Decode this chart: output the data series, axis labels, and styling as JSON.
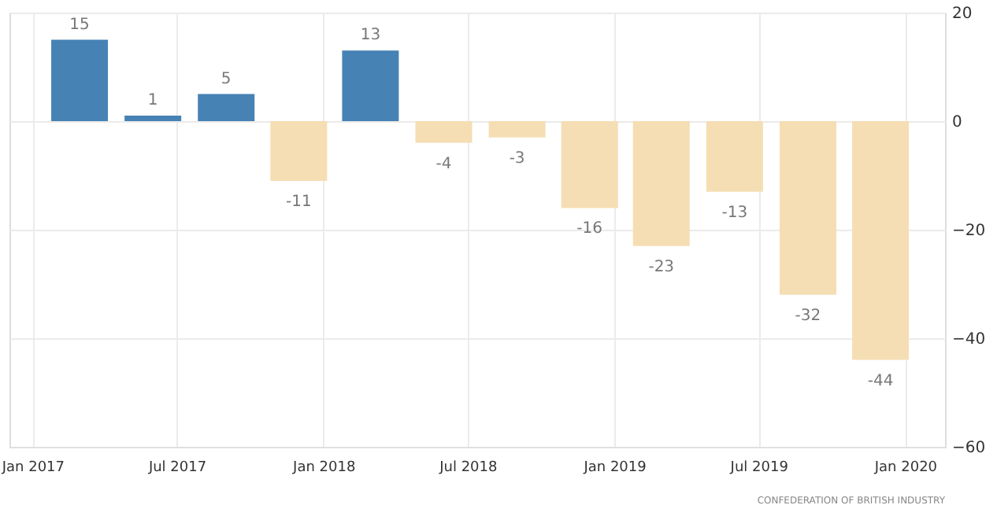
{
  "chart_data": {
    "type": "bar",
    "x": [
      "2017-03",
      "2017-06",
      "2017-09",
      "2017-12",
      "2018-03",
      "2018-06",
      "2018-09",
      "2018-12",
      "2019-03",
      "2019-06",
      "2019-09",
      "2019-12"
    ],
    "values": [
      15,
      1,
      5,
      -11,
      13,
      -4,
      -3,
      -16,
      -23,
      -13,
      -32,
      -44
    ],
    "colors": [
      "#4682b4",
      "#4682b4",
      "#4682b4",
      "#f5deb3",
      "#4682b4",
      "#f5deb3",
      "#f5deb3",
      "#f5deb3",
      "#f5deb3",
      "#f5deb3",
      "#f5deb3",
      "#f5deb3"
    ],
    "data_labels": true,
    "xlim": [
      "2016-12-03",
      "2020-02-20"
    ],
    "xticks": [
      {
        "value": "2017-01",
        "label": "Jan 2017"
      },
      {
        "value": "2017-07",
        "label": "Jul 2017"
      },
      {
        "value": "2018-01",
        "label": "Jan 2018"
      },
      {
        "value": "2018-07",
        "label": "Jul 2018"
      },
      {
        "value": "2019-01",
        "label": "Jan 2019"
      },
      {
        "value": "2019-07",
        "label": "Jul 2019"
      },
      {
        "value": "2020-01",
        "label": "Jan 2020"
      }
    ],
    "ylim": [
      -60,
      20
    ],
    "yticks": [
      -60,
      -40,
      -20,
      0,
      20
    ],
    "grid": true,
    "annotations": [
      "CONFEDERATION OF BRITISH INDUSTRY"
    ]
  }
}
